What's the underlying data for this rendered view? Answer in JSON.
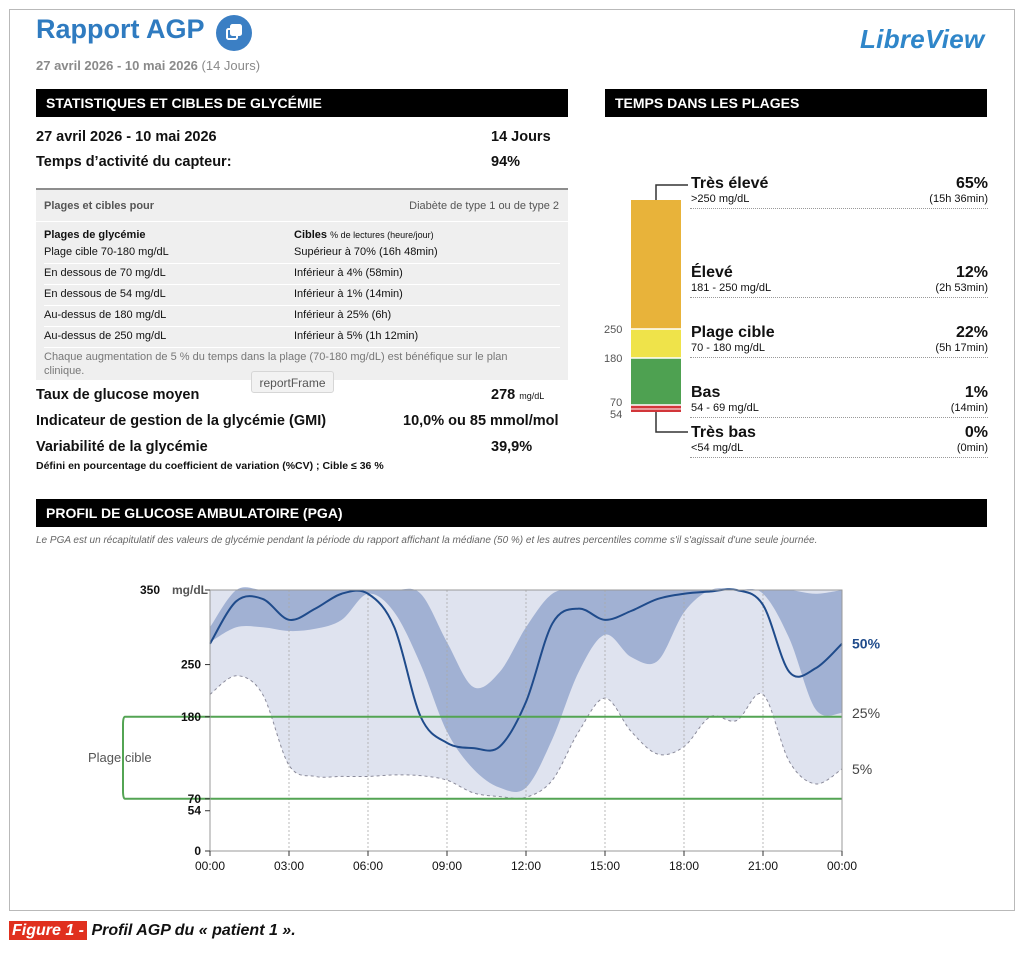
{
  "header": {
    "title": "Rapport AGP",
    "date_range": "27 avril 2026 - 10 mai 2026",
    "days_paren": "(14 Jours)",
    "brand": "LibreView"
  },
  "stats": {
    "heading": "STATISTIQUES ET CIBLES DE GLYCÉMIE",
    "period_label": "27 avril 2026 - 10 mai 2026",
    "period_value": "14 Jours",
    "sensor_label": "Temps d’activité du capteur:",
    "sensor_value": "94%",
    "table_title": "Plages et cibles pour",
    "table_type": "Diabète de type 1 ou de type 2",
    "col1_header": "Plages de glycémie",
    "col2_header": "Cibles",
    "col2_header_sub": "% de lectures (heure/jour)",
    "rows": [
      {
        "range": "Plage cible 70-180 mg/dL",
        "target": "Supérieur à 70% (16h 48min)"
      },
      {
        "range": "En dessous de 70 mg/dL",
        "target": "Inférieur à 4% (58min)"
      },
      {
        "range": "En dessous de 54 mg/dL",
        "target": "Inférieur à 1% (14min)"
      },
      {
        "range": "Au-dessus de 180 mg/dL",
        "target": "Inférieur à 25% (6h)"
      },
      {
        "range": "Au-dessus de 250 mg/dL",
        "target": "Inférieur à 5% (1h 12min)"
      }
    ],
    "note": "Chaque augmentation de 5 % du temps dans la plage (70-180 mg/dL) est bénéfique sur le plan clinique.",
    "tooltip": "reportFrame",
    "mean_label": "Taux de glucose moyen",
    "mean_value": "278",
    "mean_unit": "mg/dL",
    "gmi_label": "Indicateur de gestion de la glycémie (GMI)",
    "gmi_value": "10,0% ou 85 mmol/mol",
    "var_label": "Variabilité de la glycémie",
    "var_value": "39,9%",
    "var_note": "Défini en pourcentage du coefficient de variation (%CV) ; Cible ≤ 36 %"
  },
  "tir": {
    "heading": "TEMPS DANS LES PLAGES",
    "axis_labels": [
      "250",
      "180",
      "70",
      "54"
    ],
    "bands": [
      {
        "label": "Très élevé",
        "range": ">250 mg/dL",
        "pct": "65%",
        "time": "(15h 36min)",
        "color": "#e8b33a",
        "fraction": 0.65
      },
      {
        "label": "Élevé",
        "range": "181 - 250 mg/dL",
        "pct": "12%",
        "time": "(2h 53min)",
        "color": "#efe34a",
        "fraction": 0.12
      },
      {
        "label": "Plage cible",
        "range": "70 - 180 mg/dL",
        "pct": "22%",
        "time": "(5h 17min)",
        "color": "#4ea151",
        "fraction": 0.22
      },
      {
        "label": "Bas",
        "range": "54 - 69 mg/dL",
        "pct": "1%",
        "time": "(14min)",
        "color": "#d2363a",
        "fraction": 0.01
      },
      {
        "label": "Très bas",
        "range": "<54 mg/dL",
        "pct": "0%",
        "time": "(0min)",
        "color": "#9e1b1f",
        "fraction": 0.0
      }
    ]
  },
  "agp": {
    "heading": "PROFIL DE GLUCOSE AMBULATOIRE (PGA)",
    "description": "Le PGA est un récapitulatif des valeurs de glycémie pendant la période du rapport affichant la médiane (50 %) et les autres percentiles comme s'il s'agissait d'une seule journée.",
    "target_label": "Plage cible"
  },
  "chart_data": {
    "type": "area",
    "x_label": "",
    "x": [
      "00:00",
      "01:00",
      "02:00",
      "03:00",
      "04:00",
      "05:00",
      "06:00",
      "07:00",
      "08:00",
      "09:00",
      "10:00",
      "11:00",
      "12:00",
      "13:00",
      "14:00",
      "15:00",
      "16:00",
      "17:00",
      "18:00",
      "19:00",
      "20:00",
      "21:00",
      "22:00",
      "23:00",
      "24:00"
    ],
    "x_tick_labels": [
      "00:00",
      "03:00",
      "06:00",
      "09:00",
      "12:00",
      "15:00",
      "18:00",
      "21:00",
      "00:00"
    ],
    "y_ticks": [
      0,
      54,
      70,
      180,
      250,
      350
    ],
    "y_tick_labels": [
      "0",
      "54",
      "70",
      "180",
      "250",
      "350"
    ],
    "y_unit": "mg/dL",
    "ylim": [
      0,
      350
    ],
    "target_range": [
      70,
      180
    ],
    "series": [
      {
        "name": "5%",
        "values": [
          210,
          235,
          210,
          115,
          100,
          100,
          100,
          102,
          101,
          95,
          78,
          73,
          72,
          95,
          160,
          205,
          160,
          130,
          140,
          180,
          175,
          210,
          120,
          90,
          110
        ]
      },
      {
        "name": "25%",
        "values": [
          280,
          300,
          300,
          295,
          298,
          310,
          345,
          320,
          250,
          160,
          110,
          85,
          85,
          150,
          240,
          290,
          260,
          255,
          320,
          350,
          350,
          345,
          285,
          190,
          185
        ]
      },
      {
        "name": "50%",
        "values": [
          278,
          335,
          338,
          310,
          325,
          345,
          345,
          300,
          180,
          145,
          138,
          140,
          200,
          305,
          325,
          310,
          322,
          338,
          345,
          348,
          350,
          330,
          240,
          245,
          278
        ]
      },
      {
        "name": "75%",
        "values": [
          300,
          350,
          350,
          350,
          350,
          350,
          350,
          350,
          345,
          280,
          220,
          240,
          300,
          345,
          350,
          350,
          350,
          350,
          350,
          350,
          350,
          350,
          350,
          345,
          350
        ]
      },
      {
        "name": "95%",
        "values": [
          350,
          350,
          350,
          350,
          350,
          350,
          350,
          350,
          350,
          350,
          350,
          350,
          350,
          350,
          350,
          350,
          350,
          350,
          350,
          350,
          350,
          350,
          350,
          350,
          350
        ]
      }
    ],
    "right_labels": [
      "50%",
      "25%",
      "5%"
    ],
    "colors": {
      "outer_band": "#dfe3ef",
      "inner_band": "#a1b1d3",
      "median": "#1f4b8b",
      "target": "#53a453"
    }
  },
  "caption": {
    "tag": "Figure 1 -",
    "text": "Profil AGP du « patient 1 »."
  }
}
